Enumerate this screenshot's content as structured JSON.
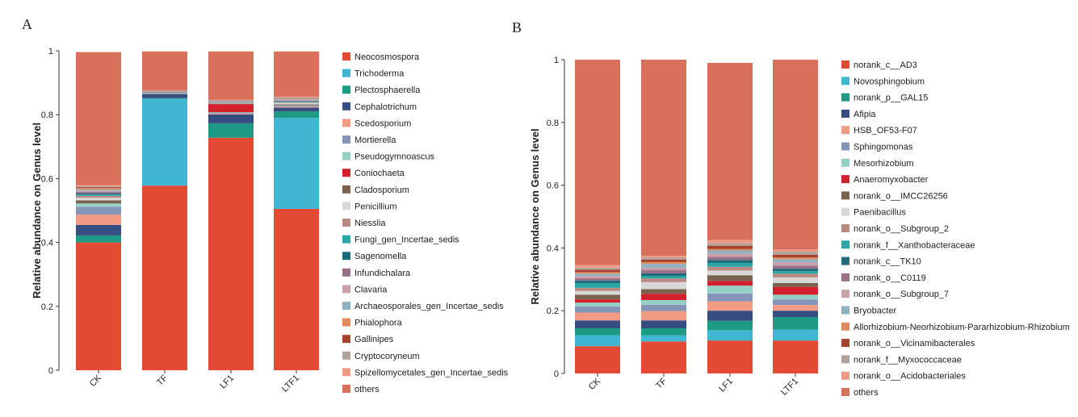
{
  "panels": [
    {
      "letter": "A"
    },
    {
      "letter": "B"
    }
  ],
  "chart_data": [
    {
      "type": "bar",
      "stacked": true,
      "ylabel": "Relative abundance on Genus level",
      "ylim": [
        0,
        1
      ],
      "yticks": [
        "0",
        "0.2",
        "0.4",
        "0.6",
        "0.8",
        "1"
      ],
      "categories": [
        "CK",
        "TF",
        "LF1",
        "LTF1"
      ],
      "legend_position": "right",
      "series": [
        {
          "name": "Neocosmospora",
          "color": "#e34a33",
          "values": [
            0.4,
            0.578,
            0.728,
            0.505
          ]
        },
        {
          "name": "Trichoderma",
          "color": "#41b6d2",
          "values": [
            0.0,
            0.272,
            0.0,
            0.285
          ]
        },
        {
          "name": "Plectosphaerella",
          "color": "#1e9a84",
          "values": [
            0.022,
            0.002,
            0.045,
            0.02
          ]
        },
        {
          "name": "Cephalotrichum",
          "color": "#354d80",
          "values": [
            0.033,
            0.012,
            0.028,
            0.012
          ]
        },
        {
          "name": "Scedosporium",
          "color": "#f19a84",
          "values": [
            0.032,
            0.0,
            0.003,
            0.003
          ]
        },
        {
          "name": "Mortierella",
          "color": "#8595b8",
          "values": [
            0.025,
            0.001,
            0.003,
            0.003
          ]
        },
        {
          "name": "Pseudogymnoascus",
          "color": "#94d1c4",
          "values": [
            0.01,
            0.0,
            0.001,
            0.001
          ]
        },
        {
          "name": "Coniochaeta",
          "color": "#d3202c",
          "values": [
            0.0,
            0.0,
            0.025,
            0.0
          ]
        },
        {
          "name": "Cladosporium",
          "color": "#7a624e",
          "values": [
            0.01,
            0.001,
            0.002,
            0.003
          ]
        },
        {
          "name": "Penicillium",
          "color": "#d8d8d8",
          "values": [
            0.008,
            0.001,
            0.002,
            0.005
          ]
        },
        {
          "name": "Niesslia",
          "color": "#b98a82",
          "values": [
            0.006,
            0.001,
            0.001,
            0.002
          ]
        },
        {
          "name": "Fungi_gen_Incertae_sedis",
          "color": "#2aa6a4",
          "values": [
            0.004,
            0.001,
            0.001,
            0.002
          ]
        },
        {
          "name": "Sagenomella",
          "color": "#1f6b7a",
          "values": [
            0.004,
            0.001,
            0.001,
            0.001
          ]
        },
        {
          "name": "Infundichalara",
          "color": "#9a7087",
          "values": [
            0.004,
            0.001,
            0.001,
            0.002
          ]
        },
        {
          "name": "Clavaria",
          "color": "#caa0a8",
          "values": [
            0.004,
            0.001,
            0.001,
            0.003
          ]
        },
        {
          "name": "Archaeosporales_gen_Incertae_sedis",
          "color": "#8fb1c2",
          "values": [
            0.004,
            0.001,
            0.001,
            0.003
          ]
        },
        {
          "name": "Phialophora",
          "color": "#e08a60",
          "values": [
            0.004,
            0.001,
            0.001,
            0.002
          ]
        },
        {
          "name": "Gallinipes",
          "color": "#a6422b",
          "values": [
            0.003,
            0.001,
            0.001,
            0.001
          ]
        },
        {
          "name": "Cryptocoryneum",
          "color": "#b0a29a",
          "values": [
            0.003,
            0.001,
            0.001,
            0.002
          ]
        },
        {
          "name": "Spizellomycetales_gen_Incertae_sedis",
          "color": "#ee9a86",
          "values": [
            0.003,
            0.001,
            0.001,
            0.002
          ]
        },
        {
          "name": "others",
          "color": "#d8705c",
          "values": [
            0.417,
            0.121,
            0.151,
            0.141
          ]
        }
      ]
    },
    {
      "type": "bar",
      "stacked": true,
      "ylabel": "Relative abundance on Genus level",
      "ylim": [
        0,
        1
      ],
      "yticks": [
        "0",
        "0.2",
        "0.4",
        "0.6",
        "0.8",
        "1"
      ],
      "categories": [
        "CK",
        "TF",
        "LF1",
        "LTF1"
      ],
      "legend_position": "right",
      "series": [
        {
          "name": "norank_c__AD3",
          "color": "#e34a33",
          "values": [
            0.087,
            0.102,
            0.105,
            0.105
          ]
        },
        {
          "name": "Novosphingobium",
          "color": "#41b6d2",
          "values": [
            0.035,
            0.02,
            0.033,
            0.035
          ]
        },
        {
          "name": "norank_p__GAL15",
          "color": "#1e9a84",
          "values": [
            0.022,
            0.022,
            0.03,
            0.04
          ]
        },
        {
          "name": "Afipia",
          "color": "#354d80",
          "values": [
            0.025,
            0.025,
            0.032,
            0.02
          ]
        },
        {
          "name": "HSB_OF53-F07",
          "color": "#f19a84",
          "values": [
            0.025,
            0.03,
            0.03,
            0.018
          ]
        },
        {
          "name": "Sphingomonas",
          "color": "#8595b8",
          "values": [
            0.02,
            0.02,
            0.025,
            0.018
          ]
        },
        {
          "name": "Mesorhizobium",
          "color": "#94d1c4",
          "values": [
            0.012,
            0.015,
            0.025,
            0.015
          ]
        },
        {
          "name": "Anaeromyxobacter",
          "color": "#d3202c",
          "values": [
            0.01,
            0.02,
            0.015,
            0.025
          ]
        },
        {
          "name": "norank_o__IMCC26256",
          "color": "#7a624e",
          "values": [
            0.015,
            0.015,
            0.018,
            0.012
          ]
        },
        {
          "name": "Paenibacillus",
          "color": "#d8d8d8",
          "values": [
            0.012,
            0.022,
            0.015,
            0.018
          ]
        },
        {
          "name": "norank_o__Subgroup_2",
          "color": "#b98a82",
          "values": [
            0.01,
            0.012,
            0.012,
            0.012
          ]
        },
        {
          "name": "norank_f__Xanthobacteraceae",
          "color": "#2aa6a4",
          "values": [
            0.015,
            0.008,
            0.012,
            0.008
          ]
        },
        {
          "name": "norank_c__TK10",
          "color": "#1f6b7a",
          "values": [
            0.008,
            0.008,
            0.01,
            0.008
          ]
        },
        {
          "name": "norank_o__C0119",
          "color": "#9a7087",
          "values": [
            0.008,
            0.01,
            0.01,
            0.01
          ]
        },
        {
          "name": "norank_o__Subgroup_7",
          "color": "#caa0a8",
          "values": [
            0.006,
            0.008,
            0.01,
            0.01
          ]
        },
        {
          "name": "Bryobacter",
          "color": "#8fb1c2",
          "values": [
            0.008,
            0.012,
            0.01,
            0.01
          ]
        },
        {
          "name": "Allorhizobium-Neorhizobium-Pararhizobium-Rhizobium",
          "color": "#e08a60",
          "values": [
            0.005,
            0.006,
            0.005,
            0.006
          ]
        },
        {
          "name": "norank_o__Vicinamibacterales",
          "color": "#a6422b",
          "values": [
            0.008,
            0.008,
            0.01,
            0.008
          ]
        },
        {
          "name": "norank_f__Myxococcaceae",
          "color": "#b0a29a",
          "values": [
            0.006,
            0.006,
            0.008,
            0.01
          ]
        },
        {
          "name": "norank_o__Acidobacteriales",
          "color": "#ee9a86",
          "values": [
            0.008,
            0.006,
            0.01,
            0.007
          ]
        },
        {
          "name": "others",
          "color": "#d8705c",
          "values": [
            0.655,
            0.625,
            0.565,
            0.605
          ]
        }
      ]
    }
  ]
}
